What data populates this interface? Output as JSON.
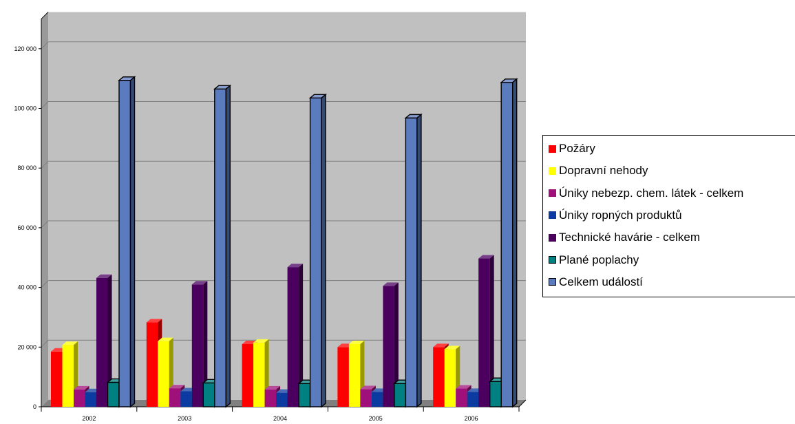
{
  "chart_data": {
    "type": "bar",
    "categories": [
      "2002",
      "2003",
      "2004",
      "2005",
      "2006"
    ],
    "y_ticks": [
      "0",
      "20 000",
      "40 000",
      "60 000",
      "80 000",
      "100 000",
      "120 000"
    ],
    "ylim": [
      0,
      130000
    ],
    "grid": true,
    "legend_position": "right",
    "series": [
      {
        "name": "Požáry",
        "color": "#ff0000",
        "values": [
          18500,
          28300,
          21000,
          20000,
          20000
        ]
      },
      {
        "name": "Dopravní nehody",
        "color": "#ffff00",
        "values": [
          20700,
          22000,
          21500,
          21000,
          19300
        ]
      },
      {
        "name": "Úniky nebezp. chem. látek - celkem",
        "color": "#a0107a",
        "values": [
          5800,
          6200,
          5800,
          5900,
          6100
        ]
      },
      {
        "name": "Úniky ropných produktů",
        "color": "#0b3aa0",
        "values": [
          4900,
          5200,
          4700,
          5000,
          5000
        ]
      },
      {
        "name": "Technické havárie - celkem",
        "color": "#4b0060",
        "values": [
          43200,
          41000,
          46800,
          40500,
          49700
        ]
      },
      {
        "name": "Plané poplachy",
        "color": "#008080",
        "values": [
          8200,
          8000,
          7800,
          7800,
          8500
        ]
      },
      {
        "name": "Celkem událostí",
        "color": "#5b7bbf",
        "values": [
          109400,
          106500,
          103500,
          96800,
          108700
        ]
      }
    ]
  }
}
